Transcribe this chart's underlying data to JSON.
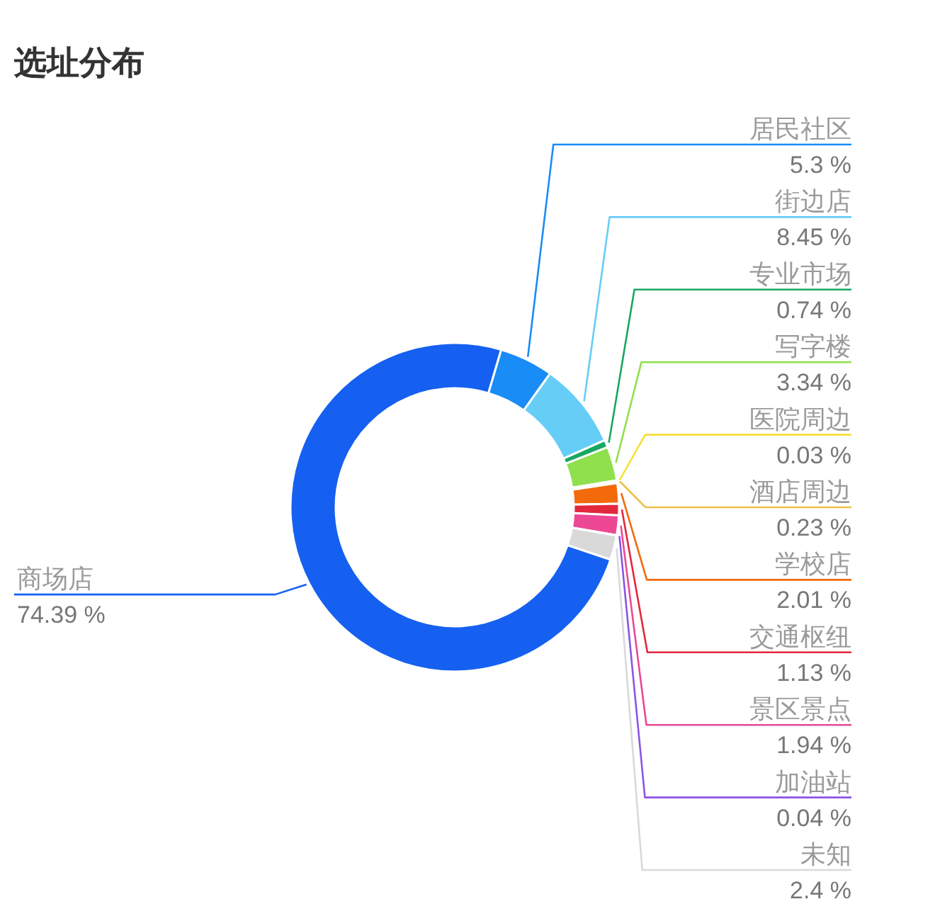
{
  "chart_data": {
    "type": "donut",
    "title": "选址分布",
    "categories": [
      "居民社区",
      "街边店",
      "专业市场",
      "写字楼",
      "医院周边",
      "酒店周边",
      "学校店",
      "交通枢纽",
      "景区景点",
      "加油站",
      "未知",
      "商场店"
    ],
    "values": [
      5.3,
      8.45,
      0.74,
      3.34,
      0.03,
      0.23,
      2.01,
      1.13,
      1.94,
      0.04,
      2.4,
      74.39
    ],
    "colors": [
      "#1a8cf5",
      "#66cdf7",
      "#17a863",
      "#8fe04c",
      "#f7df3a",
      "#ecc04a",
      "#f26a0c",
      "#e3283e",
      "#ec4893",
      "#8a55e6",
      "#d9d9d9",
      "#1560f0"
    ],
    "value_labels": [
      "5.3 %",
      "8.45 %",
      "0.74 %",
      "3.34 %",
      "0.03 %",
      "0.23 %",
      "2.01 %",
      "1.13 %",
      "1.94 %",
      "0.04 %",
      "2.4 %",
      "74.39 %"
    ]
  }
}
